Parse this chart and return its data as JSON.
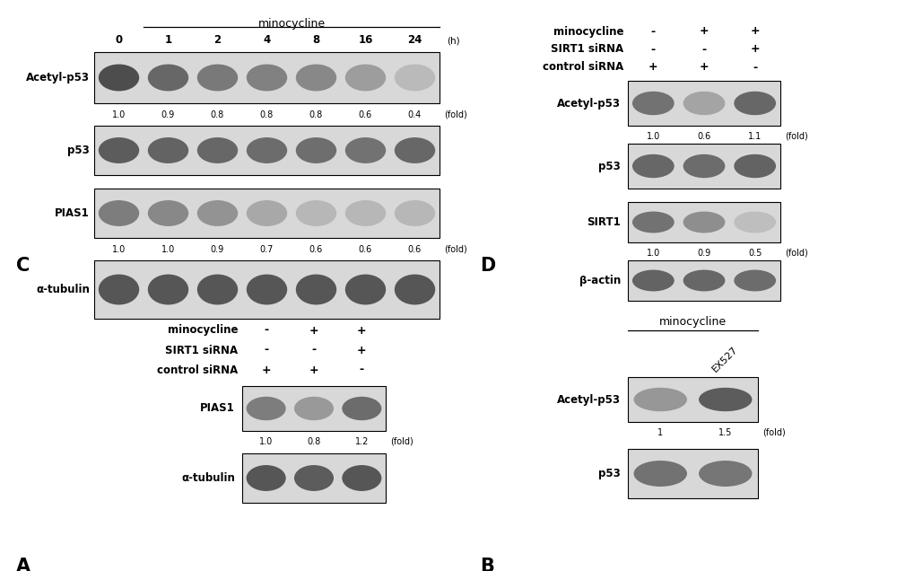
{
  "bg_color": "#ffffff",
  "A": {
    "label": "A",
    "title": "minocycline",
    "timepoints": [
      "0",
      "1",
      "2",
      "4",
      "8",
      "16",
      "24"
    ],
    "unit": "(h)",
    "rows": [
      {
        "name": "Acetyl-p53",
        "fold_values": [
          "1.0",
          "0.9",
          "0.8",
          "0.8",
          "0.8",
          "0.6",
          "0.4"
        ],
        "show_fold": true,
        "band_intensities": [
          0.82,
          0.7,
          0.62,
          0.58,
          0.55,
          0.45,
          0.32
        ]
      },
      {
        "name": "p53",
        "fold_values": null,
        "show_fold": false,
        "band_intensities": [
          0.75,
          0.72,
          0.7,
          0.68,
          0.67,
          0.65,
          0.7
        ]
      },
      {
        "name": "PIAS1",
        "fold_values": [
          "1.0",
          "1.0",
          "0.9",
          "0.7",
          "0.6",
          "0.6",
          "0.6"
        ],
        "show_fold": true,
        "band_intensities": [
          0.6,
          0.55,
          0.5,
          0.4,
          0.33,
          0.33,
          0.33
        ]
      },
      {
        "name": "α-tubulin",
        "fold_values": null,
        "show_fold": false,
        "band_intensities": [
          0.78,
          0.78,
          0.78,
          0.78,
          0.78,
          0.78,
          0.78
        ]
      }
    ]
  },
  "B": {
    "label": "B",
    "conditions": [
      "minocycline",
      "SIRT1 siRNA",
      "control siRNA"
    ],
    "condition_vals": [
      [
        "-",
        "+",
        "+"
      ],
      [
        "-",
        "-",
        "+"
      ],
      [
        "+",
        "+",
        "-"
      ]
    ],
    "rows": [
      {
        "name": "Acetyl-p53",
        "fold_values": [
          "1.0",
          "0.6",
          "1.1"
        ],
        "show_fold": true,
        "band_intensities": [
          0.65,
          0.42,
          0.7
        ]
      },
      {
        "name": "p53",
        "fold_values": null,
        "show_fold": false,
        "band_intensities": [
          0.7,
          0.68,
          0.72
        ]
      },
      {
        "name": "SIRT1",
        "fold_values": [
          "1.0",
          "0.9",
          "0.5"
        ],
        "show_fold": true,
        "band_intensities": [
          0.65,
          0.52,
          0.3
        ]
      },
      {
        "name": "β-actin",
        "fold_values": null,
        "show_fold": false,
        "band_intensities": [
          0.72,
          0.7,
          0.68
        ]
      }
    ]
  },
  "C": {
    "label": "C",
    "conditions": [
      "minocycline",
      "SIRT1 siRNA",
      "control siRNA"
    ],
    "condition_vals": [
      [
        "-",
        "+",
        "+"
      ],
      [
        "-",
        "-",
        "+"
      ],
      [
        "+",
        "+",
        "-"
      ]
    ],
    "rows": [
      {
        "name": "PIAS1",
        "fold_values": [
          "1.0",
          "0.8",
          "1.2"
        ],
        "show_fold": true,
        "band_intensities": [
          0.6,
          0.47,
          0.68
        ]
      },
      {
        "name": "α-tubulin",
        "fold_values": null,
        "show_fold": false,
        "band_intensities": [
          0.78,
          0.75,
          0.78
        ]
      }
    ]
  },
  "D": {
    "label": "D",
    "title": "minocycline",
    "ex527_label": "EX527",
    "rows": [
      {
        "name": "Acetyl-p53",
        "fold_values": [
          "1",
          "1.5"
        ],
        "show_fold": true,
        "band_intensities": [
          0.48,
          0.75
        ]
      },
      {
        "name": "p53",
        "fold_values": null,
        "show_fold": false,
        "band_intensities": [
          0.65,
          0.63
        ]
      }
    ]
  }
}
